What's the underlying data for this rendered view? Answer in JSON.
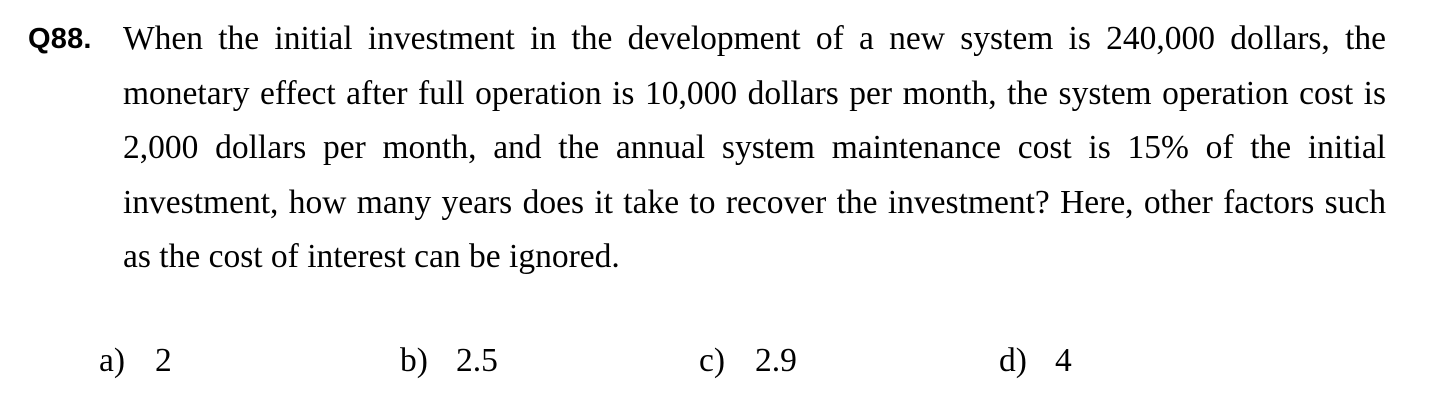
{
  "question": {
    "number": "Q88.",
    "text": "When the initial investment in the development of a new system is 240,000 dollars, the monetary effect after full operation is 10,000 dollars per month, the system operation cost is 2,000 dollars per month, and the annual system maintenance cost is 15% of the initial investment, how many years does it take to recover the investment?  Here, other factors such as the cost of interest can be ignored."
  },
  "choices": [
    {
      "marker": "a)",
      "value": "2"
    },
    {
      "marker": "b)",
      "value": "2.5"
    },
    {
      "marker": "c)",
      "value": "2.9"
    },
    {
      "marker": "d)",
      "value": "4"
    }
  ]
}
